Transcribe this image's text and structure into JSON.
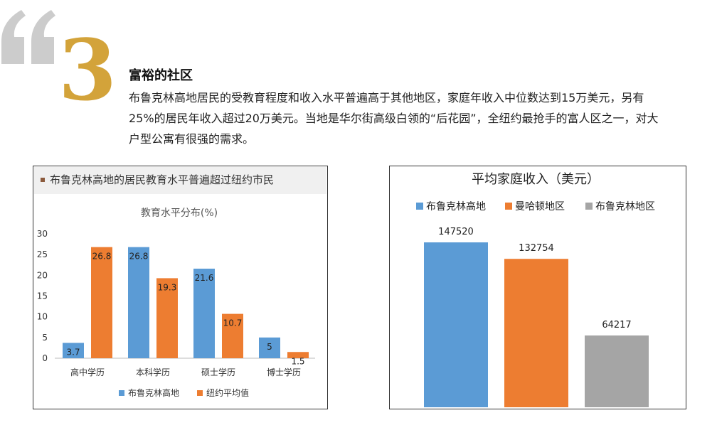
{
  "header": {
    "number": "3",
    "title": "富裕的社区",
    "intro": "布鲁克林高地居民的受教育程度和收入水平普遍高于其他地区，家庭年收入中位数达到15万美元，另有25%的居民年收入超过20万美元。当地是华尔街高级白领的“后花园”，全纽约最抢手的富人区之一，对大户型公寓有很强的需求。"
  },
  "left_panel": {
    "header": "布鲁克林高地的居民教育水平普遍超过纽约市民"
  },
  "colors": {
    "blue": "#5b9bd5",
    "orange": "#ed7d31",
    "gray": "#a5a5a5",
    "gold": "#d3a33a",
    "quote_gray": "#cccccc"
  },
  "chart_data": [
    {
      "type": "bar",
      "title": "教育水平分布(%)",
      "categories": [
        "高中学历",
        "本科学历",
        "硕士学历",
        "博士学历"
      ],
      "series": [
        {
          "name": "布鲁克林高地",
          "values": [
            3.7,
            26.8,
            21.6,
            5
          ],
          "labels": [
            "3.7",
            "26.8",
            "21.6",
            "5"
          ],
          "color": "#5b9bd5"
        },
        {
          "name": "纽约平均值",
          "values": [
            26.8,
            19.3,
            10.7,
            1.5
          ],
          "labels": [
            "26.8",
            "19.3",
            "10.7",
            "1.5"
          ],
          "color": "#ed7d31"
        }
      ],
      "ylim": [
        0,
        30
      ],
      "yticks": [
        0,
        5,
        10,
        15,
        20,
        25,
        30
      ],
      "legend": "bottom",
      "grid": false
    },
    {
      "type": "bar",
      "title": "平均家庭收入（美元）",
      "categories": [
        "布鲁克林高地",
        "曼哈顿地区",
        "布鲁克林地区"
      ],
      "values": [
        147520,
        132754,
        64217
      ],
      "labels": [
        "147520",
        "132754",
        "64217"
      ],
      "colors": [
        "#5b9bd5",
        "#ed7d31",
        "#a5a5a5"
      ],
      "legend": "top",
      "grid": false
    }
  ]
}
